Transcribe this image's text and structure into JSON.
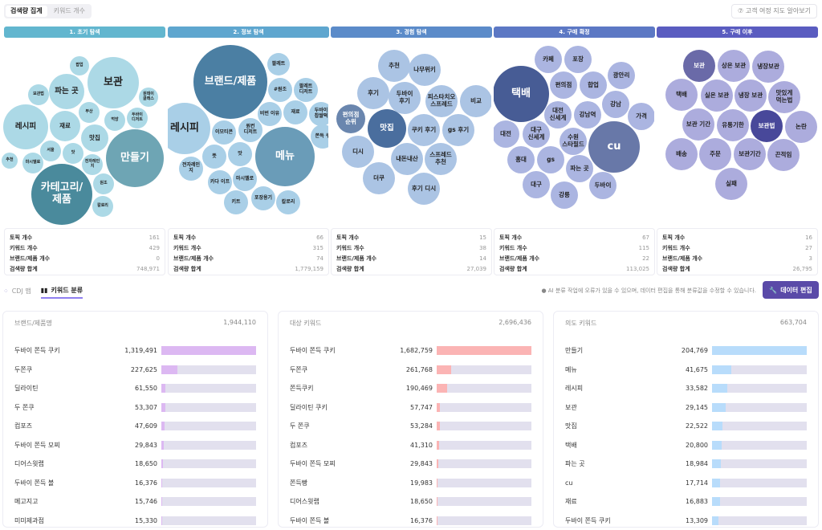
{
  "view_toggle": {
    "options": [
      "검색량 집계",
      "키워드 개수"
    ],
    "selected": 0
  },
  "help_button": "⑦ 고객 여정 지도 알아보기",
  "stages": [
    {
      "title": "1. 초기 탐색",
      "color": "#62b6cf",
      "palette": [
        "#acd9e6",
        "#6ea5b4",
        "#4a8a9c"
      ],
      "bubbles": [
        "팝업",
        "보관",
        "파는 곳",
        "보관법",
        "원데이\n클래스",
        "레시피",
        "재료",
        "부산",
        "먹방",
        "두바이\n디저트",
        "맛집",
        "만들기",
        "서울",
        "맛",
        "추천",
        "마시멜로",
        "전자레인\n지",
        "카테고리/\n제품",
        "원조",
        "칼로리"
      ],
      "stats": {
        "topics": "161",
        "keywords": "429",
        "brands": "0",
        "volume": "748,971"
      }
    },
    {
      "title": "2. 정보 탐색",
      "color": "#5ea6cf",
      "palette": [
        "#a9cfe7",
        "#6a9cb8",
        "#4b7fa3"
      ],
      "bubbles": [
        "팔레트",
        "#원조",
        "팔레트\n디저트",
        "비번 이유",
        "재료",
        "두바이\n찹쌀떡",
        "쫀득 쿠",
        "레시피",
        "이모티콘",
        "원컨\n디저트",
        "메뉴",
        "뜻",
        "맛",
        "전자레인\n지",
        "카다 이프",
        "마시멜로",
        "키트",
        "포장용기",
        "칼로리",
        "브랜드/제품"
      ],
      "stats": {
        "topics": "66",
        "keywords": "315",
        "brands": "74",
        "volume": "1,779,159"
      }
    },
    {
      "title": "3. 경험 탐색",
      "color": "#5b8bc9",
      "palette": [
        "#abc4e4",
        "#6a86ae",
        "#4a6e9e"
      ],
      "bubbles": [
        "추천",
        "나무위키",
        "후기",
        "두바이\n후기",
        "피스타치오\n스프레드",
        "비교",
        "편의점\n순위",
        "맛집",
        "쿠키 후기",
        "gs 후기",
        "디시",
        "내돈내산",
        "스프레드\n추천",
        "더쿠",
        "후기 디시"
      ],
      "stats": {
        "topics": "15",
        "keywords": "38",
        "brands": "14",
        "volume": "27,039"
      }
    },
    {
      "title": "4. 구매 확정",
      "color": "#5c78c4",
      "palette": [
        "#abb5e1",
        "#6878a8",
        "#475c95"
      ],
      "bubbles": [
        "카페",
        "포장",
        "택배",
        "편의점",
        "합업",
        "광안리",
        "강남",
        "가격",
        "대전\n신세계",
        "강남역",
        "대전",
        "대구\n신세계",
        "수원\n스타필드",
        "cu",
        "홍대",
        "gs",
        "파는 곳",
        "대구",
        "강릉",
        "두바이"
      ],
      "stats": {
        "topics": "67",
        "keywords": "115",
        "brands": "22",
        "volume": "113,025"
      }
    },
    {
      "title": "5. 구매 이후",
      "color": "#5a5cc0",
      "palette": [
        "#acacdd",
        "#6a6aa8",
        "#48489a"
      ],
      "bubbles": [
        "보관",
        "상온 보관",
        "냉장보관",
        "택배",
        "실온 보관",
        "냉장 보관",
        "맛있게\n먹는법",
        "보관 기간",
        "유통기한",
        "보관법",
        "논란",
        "배송",
        "주문",
        "보관기간",
        "끈적임",
        "실패"
      ],
      "stats": {
        "topics": "16",
        "keywords": "27",
        "brands": "3",
        "volume": "26,795"
      }
    }
  ],
  "stat_labels": {
    "topics": "토픽 개수",
    "keywords": "키워드 개수",
    "brands": "브랜드/제품 개수",
    "volume": "검색량 합계"
  },
  "view_tabs": [
    "CDJ 맵",
    "키워드 분류"
  ],
  "notice": "AI 분류 작업에 오류가 있을 수 있으며, 데이터 편집을 통해 분류값을 수정할 수 있습니다.",
  "edit_button": "데이터 편집",
  "tables": [
    {
      "title": "브랜드/제품명",
      "total": "1,944,110",
      "color": "#dcb8f2",
      "max": 1319491,
      "rows": [
        [
          "두바이 쫀득 쿠키",
          1319491
        ],
        [
          "두쫀쿠",
          227625
        ],
        [
          "딜라이틴",
          61550
        ],
        [
          "두 쫀쿠",
          53307
        ],
        [
          "컴포즈",
          47609
        ],
        [
          "두바이 쫀득 모찌",
          29843
        ],
        [
          "디어스윗랩",
          18650
        ],
        [
          "두바이 쫀득 볼",
          16376
        ],
        [
          "메고지고",
          15746
        ],
        [
          "미미제과점",
          15330
        ]
      ]
    },
    {
      "title": "대상 키워드",
      "total": "2,696,436",
      "color": "#fbb4b4",
      "max": 1682759,
      "rows": [
        [
          "두바이 쫀득 쿠키",
          1682759
        ],
        [
          "두쫀쿠",
          261768
        ],
        [
          "쫀득쿠키",
          190469
        ],
        [
          "딜라이틴 쿠키",
          57747
        ],
        [
          "두 쫀쿠",
          53284
        ],
        [
          "컴포즈",
          41310
        ],
        [
          "두바이 쫀득 모찌",
          29843
        ],
        [
          "쫀득빵",
          19983
        ],
        [
          "디어스윗랩",
          18650
        ],
        [
          "두바이 쫀득 볼",
          16376
        ]
      ]
    },
    {
      "title": "의도 키워드",
      "total": "663,704",
      "color": "#b8dcfb",
      "max": 204769,
      "rows": [
        [
          "만들기",
          204769
        ],
        [
          "메뉴",
          41675
        ],
        [
          "레시피",
          33582
        ],
        [
          "보관",
          29145
        ],
        [
          "맛집",
          22522
        ],
        [
          "택배",
          20800
        ],
        [
          "파는 곳",
          18984
        ],
        [
          "cu",
          17714
        ],
        [
          "재료",
          16883
        ],
        [
          "두바이 쫀득 쿠키",
          13309
        ]
      ]
    }
  ]
}
